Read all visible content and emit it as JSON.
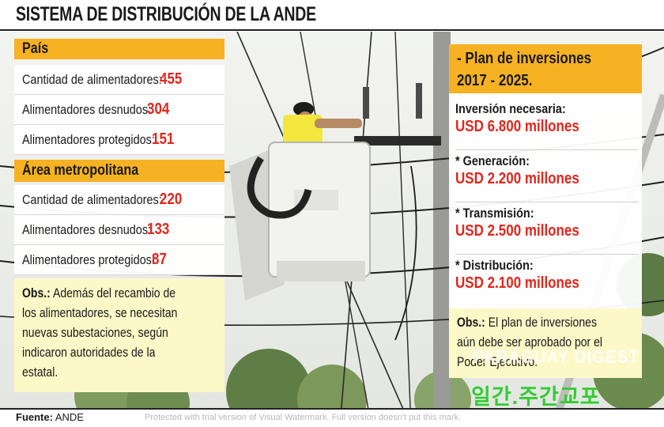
{
  "title": "SISTEMA DE DISTRIBUCIÓN DE LA ANDE",
  "pais": {
    "header": "País",
    "rows": [
      {
        "label": "Cantidad de alimentadores:",
        "value": "455"
      },
      {
        "label": "Alimentadores desnudos:",
        "value": "304"
      },
      {
        "label": "Alimentadores protegidos:",
        "value": "151"
      }
    ]
  },
  "metro": {
    "header": "Área metropolitana",
    "rows": [
      {
        "label": "Cantidad de alimentadores:",
        "value": "220"
      },
      {
        "label": "Alimentadores desnudos:",
        "value": "133"
      },
      {
        "label": "Alimentadores protegidos:",
        "value": "87"
      }
    ]
  },
  "obs_left": {
    "label": "Obs.:",
    "lines": [
      " Además del recambio de",
      "los alimentadores, se necesitan",
      "nuevas subestaciones, según",
      "indicaron autoridades de la",
      "estatal."
    ]
  },
  "plan": {
    "title_line1": "- Plan de inversiones",
    "title_line2": "2017 - 2025.",
    "items": [
      {
        "label": "Inversión necesaria:",
        "value": "USD 6.800 millones"
      },
      {
        "label": "* Generación:",
        "value": " USD 2.200 millones"
      },
      {
        "label": "* Transmisión:",
        "value": "USD 2.500 millones"
      },
      {
        "label": "* Distribución:",
        "value": "USD 2.100 millones"
      }
    ]
  },
  "obs_right": {
    "label": "Obs.:",
    "lines": [
      " El plan de inversiones",
      "aún debe ser aprobado por el",
      "Poder Ejecutivo."
    ]
  },
  "footer": {
    "source_label": "Fuente:",
    "source_value": " ANDE",
    "trial_note": "Protected with trial version of Visual Watermark. Full version doesn't put this mark."
  },
  "watermarks": {
    "english": "PARAGUAY DIGEST",
    "korean": "일간.주간교포"
  },
  "colors": {
    "accent": "#f6b222",
    "value_red": "#e2261c",
    "obs_bg": "#fdf8c8",
    "korean_green": "#33cc33"
  }
}
